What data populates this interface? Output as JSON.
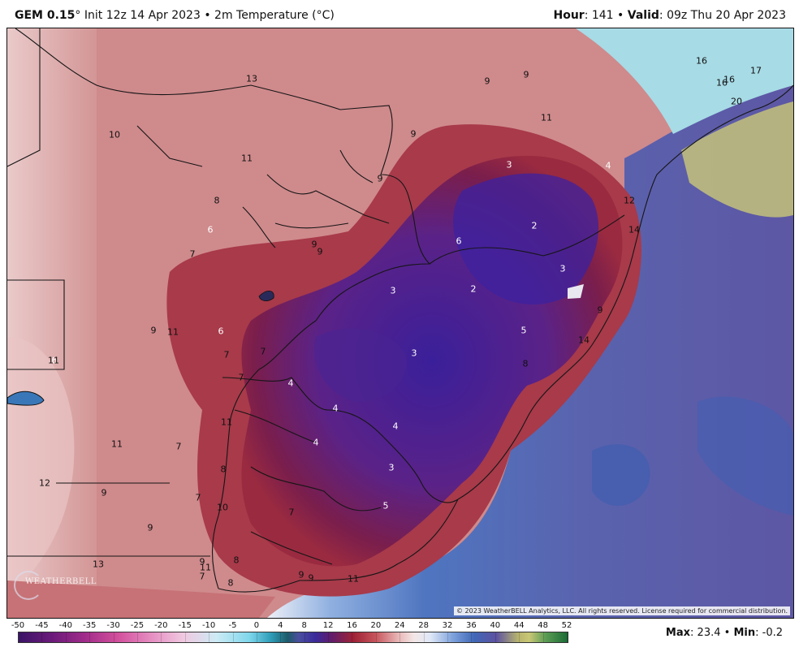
{
  "header": {
    "model": "GEM 0.15",
    "degree_mark": "°",
    "init": "Init 12z 14 Apr 2023",
    "bullet": "•",
    "field": "2m Temperature (°C)",
    "hour_label": "Hour",
    "hour_value": ": 141",
    "valid_label": "Valid",
    "valid_value": ": 09z Thu 20 Apr 2023"
  },
  "map": {
    "contour_labels": [
      "13",
      "10",
      "11",
      "9",
      "9",
      "11",
      "8",
      "6",
      "7",
      "9",
      "9",
      "9",
      "9",
      "9",
      "3",
      "4",
      "2",
      "6",
      "3",
      "2",
      "3",
      "12",
      "14",
      "9",
      "14",
      "5",
      "8",
      "3",
      "6",
      "11",
      "7",
      "6",
      "7",
      "7",
      "11",
      "4",
      "4",
      "4",
      "4",
      "3",
      "12",
      "7",
      "11",
      "9",
      "8",
      "7",
      "10",
      "7",
      "5",
      "9",
      "9",
      "11",
      "8",
      "13",
      "11",
      "9",
      "7",
      "8",
      "9",
      "11",
      "16",
      "16",
      "16",
      "17",
      "20"
    ],
    "logo_text": "WEATHERBELL",
    "copyright": "© 2023 WeatherBELL Analytics, LLC. All rights reserved. License required for commercial distribution."
  },
  "legend": {
    "ticks": [
      "-50",
      "-45",
      "-40",
      "-35",
      "-30",
      "-25",
      "-20",
      "-15",
      "-10",
      "-5",
      "0",
      "4",
      "8",
      "12",
      "16",
      "20",
      "24",
      "28",
      "32",
      "36",
      "40",
      "44",
      "48",
      "52"
    ],
    "max_label": "Max",
    "max_value": ": 23.4",
    "bullet": "•",
    "min_label": "Min",
    "min_value": ": -0.2"
  },
  "colors": {
    "cold_core": "#3a1f9a",
    "warm_land": "#c4656a",
    "ocean": "#5a78c2",
    "warm_ocean": "#c8c47a"
  }
}
